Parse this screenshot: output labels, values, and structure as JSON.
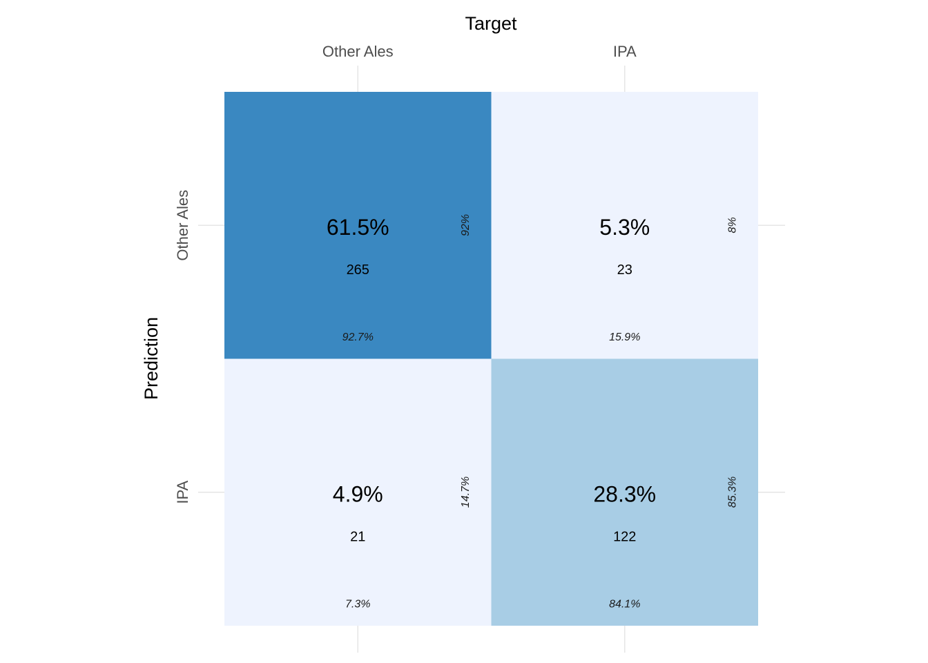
{
  "chart_data": {
    "type": "heatmap",
    "title": "",
    "xlabel": "Target",
    "ylabel": "Prediction",
    "x_categories": [
      "Other Ales",
      "IPA"
    ],
    "y_categories": [
      "Other Ales",
      "IPA"
    ],
    "x_axis_position": "top",
    "grid": true,
    "legend": "none",
    "colors": {
      "high": "#3a88c1",
      "mid": "#a8cde5",
      "low": "#eef3fe"
    },
    "cells": [
      {
        "prediction": "Other Ales",
        "target": "Other Ales",
        "count": 265,
        "percent": "61.5%",
        "col_percent": "92.7%",
        "row_percent": "92%",
        "fill": "#3a88c1"
      },
      {
        "prediction": "Other Ales",
        "target": "IPA",
        "count": 23,
        "percent": "5.3%",
        "col_percent": "15.9%",
        "row_percent": "8%",
        "fill": "#eef3fe"
      },
      {
        "prediction": "IPA",
        "target": "Other Ales",
        "count": 21,
        "percent": "4.9%",
        "col_percent": "7.3%",
        "row_percent": "14.7%",
        "fill": "#eef3fe"
      },
      {
        "prediction": "IPA",
        "target": "IPA",
        "count": 122,
        "percent": "28.3%",
        "col_percent": "84.1%",
        "row_percent": "85.3%",
        "fill": "#a8cde5"
      }
    ]
  }
}
